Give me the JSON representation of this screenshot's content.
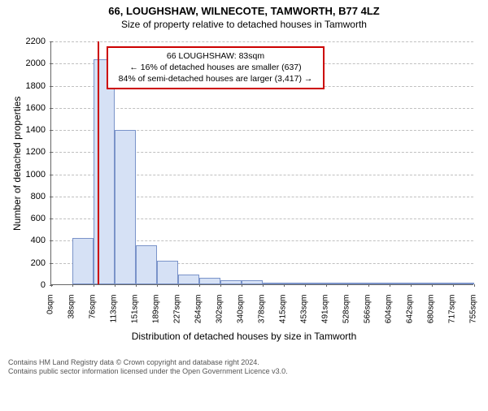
{
  "title": "66, LOUGHSHAW, WILNECOTE, TAMWORTH, B77 4LZ",
  "subtitle": "Size of property relative to detached houses in Tamworth",
  "chart": {
    "type": "histogram",
    "y_label": "Number of detached properties",
    "x_label": "Distribution of detached houses by size in Tamworth",
    "y_ticks": [
      0,
      200,
      400,
      600,
      800,
      1000,
      1200,
      1400,
      1600,
      1800,
      2000,
      2200
    ],
    "ylim_max": 2200,
    "x_tick_labels": [
      "0sqm",
      "38sqm",
      "76sqm",
      "113sqm",
      "151sqm",
      "189sqm",
      "227sqm",
      "264sqm",
      "302sqm",
      "340sqm",
      "378sqm",
      "415sqm",
      "453sqm",
      "491sqm",
      "528sqm",
      "566sqm",
      "604sqm",
      "642sqm",
      "680sqm",
      "717sqm",
      "755sqm"
    ],
    "bars": [
      {
        "x0": 0,
        "x1": 38,
        "value": 0
      },
      {
        "x0": 38,
        "x1": 76,
        "value": 420
      },
      {
        "x0": 76,
        "x1": 113,
        "value": 2030
      },
      {
        "x0": 113,
        "x1": 151,
        "value": 1395
      },
      {
        "x0": 151,
        "x1": 189,
        "value": 350
      },
      {
        "x0": 189,
        "x1": 227,
        "value": 210
      },
      {
        "x0": 227,
        "x1": 264,
        "value": 85
      },
      {
        "x0": 264,
        "x1": 302,
        "value": 60
      },
      {
        "x0": 302,
        "x1": 340,
        "value": 40
      },
      {
        "x0": 340,
        "x1": 378,
        "value": 35
      },
      {
        "x0": 378,
        "x1": 415,
        "value": 12
      },
      {
        "x0": 415,
        "x1": 453,
        "value": 6
      },
      {
        "x0": 453,
        "x1": 491,
        "value": 4
      },
      {
        "x0": 491,
        "x1": 528,
        "value": 3
      },
      {
        "x0": 528,
        "x1": 566,
        "value": 2
      },
      {
        "x0": 566,
        "x1": 604,
        "value": 1
      },
      {
        "x0": 604,
        "x1": 642,
        "value": 1
      },
      {
        "x0": 642,
        "x1": 680,
        "value": 1
      },
      {
        "x0": 680,
        "x1": 717,
        "value": 1
      },
      {
        "x0": 717,
        "x1": 755,
        "value": 1
      }
    ],
    "x_max": 755,
    "bar_fill": "#d6e1f5",
    "bar_border": "#7a93c9",
    "grid_color": "#c0c0c0",
    "background_color": "#ffffff",
    "axis_color": "#666666",
    "tick_fontsize": 11,
    "label_fontsize": 12,
    "marker": {
      "value_sqm": 83,
      "color": "#cc0000"
    },
    "annotation": {
      "border_color": "#cc0000",
      "lines": [
        "66 LOUGHSHAW: 83sqm",
        "← 16% of detached houses are smaller (637)",
        "84% of semi-detached houses are larger (3,417) →"
      ]
    }
  },
  "footer": {
    "line1": "Contains HM Land Registry data © Crown copyright and database right 2024.",
    "line2": "Contains public sector information licensed under the Open Government Licence v3.0."
  }
}
